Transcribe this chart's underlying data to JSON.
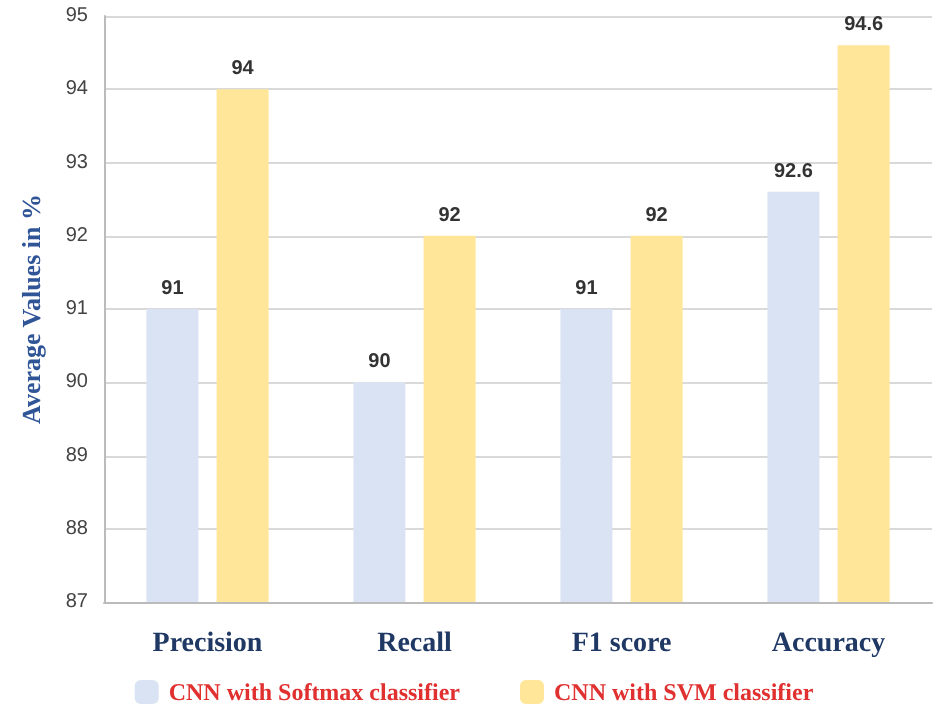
{
  "chart_data": {
    "type": "bar",
    "ylabel": "Average Values in %",
    "categories": [
      "Precision",
      "Recall",
      "F1 score",
      "Accuracy"
    ],
    "series": [
      {
        "name": "CNN with Softmax classifier",
        "color": "#dae3f3",
        "values": [
          91,
          90,
          91,
          92.6
        ]
      },
      {
        "name": "CNN with SVM classifier",
        "color": "#ffe699",
        "values": [
          94,
          92,
          92,
          94.6
        ]
      }
    ],
    "ylim": [
      87,
      95
    ],
    "yticks": [
      87,
      88,
      89,
      90,
      91,
      92,
      93,
      94,
      95
    ],
    "grid": "y",
    "legend": "bottom",
    "data_labels": true
  }
}
